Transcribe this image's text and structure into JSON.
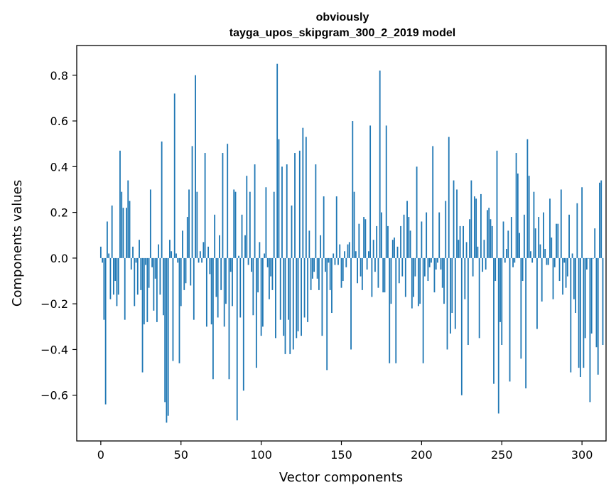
{
  "chart_data": {
    "type": "bar",
    "title_line1": "obviously",
    "title_line2": "tayga_upos_skipgram_300_2_2019 model",
    "xlabel": "Vector components",
    "ylabel": "Components values",
    "xlim": [
      -15,
      315
    ],
    "ylim": [
      -0.8,
      0.93
    ],
    "xticks": [
      0,
      50,
      100,
      150,
      200,
      250,
      300
    ],
    "xtick_labels": [
      "0",
      "50",
      "100",
      "150",
      "200",
      "250",
      "300"
    ],
    "yticks": [
      -0.6,
      -0.4,
      -0.2,
      0.0,
      0.2,
      0.4,
      0.6,
      0.8
    ],
    "ytick_labels": [
      "−0.6",
      "−0.4",
      "−0.2",
      "0.0",
      "0.2",
      "0.4",
      "0.6",
      "0.8"
    ],
    "bar_color": "#1f77b4",
    "values": [
      0.05,
      -0.02,
      -0.27,
      -0.64,
      0.16,
      0.02,
      -0.18,
      0.23,
      -0.16,
      -0.1,
      -0.21,
      -0.16,
      0.47,
      0.29,
      0.22,
      -0.27,
      0.22,
      0.34,
      0.25,
      -0.05,
      0.05,
      -0.21,
      -0.02,
      -0.16,
      0.08,
      -0.14,
      -0.5,
      -0.29,
      -0.03,
      -0.28,
      -0.13,
      0.3,
      -0.04,
      -0.23,
      -0.09,
      -0.28,
      0.06,
      -0.16,
      0.51,
      -0.25,
      -0.63,
      -0.72,
      -0.69,
      0.08,
      0.03,
      -0.45,
      0.72,
      0.02,
      -0.02,
      -0.46,
      -0.21,
      0.12,
      -0.14,
      -0.11,
      0.18,
      0.3,
      -0.12,
      0.49,
      -0.27,
      0.8,
      0.29,
      -0.02,
      0.03,
      -0.02,
      0.07,
      0.46,
      -0.3,
      0.05,
      -0.07,
      -0.29,
      -0.53,
      0.19,
      -0.17,
      -0.26,
      0.1,
      -0.14,
      0.46,
      -0.3,
      -0.2,
      0.5,
      -0.53,
      -0.06,
      -0.21,
      0.3,
      0.29,
      -0.71,
      0.01,
      -0.26,
      0.19,
      -0.58,
      0.1,
      0.36,
      -0.03,
      0.29,
      -0.06,
      -0.25,
      0.41,
      -0.48,
      -0.15,
      0.07,
      -0.34,
      -0.3,
      0.02,
      0.31,
      -0.04,
      -0.18,
      -0.08,
      -0.14,
      0.29,
      -0.35,
      0.85,
      0.52,
      -0.27,
      0.4,
      -0.34,
      -0.42,
      0.41,
      -0.27,
      -0.42,
      0.23,
      -0.4,
      0.46,
      -0.35,
      -0.32,
      0.47,
      -0.34,
      0.57,
      -0.26,
      0.53,
      -0.28,
      0.12,
      -0.14,
      -0.09,
      -0.06,
      0.41,
      -0.09,
      -0.14,
      0.1,
      -0.34,
      0.27,
      -0.06,
      -0.49,
      -0.02,
      -0.14,
      -0.24,
      0.02,
      -0.03,
      0.27,
      -0.03,
      0.06,
      -0.13,
      -0.1,
      0.03,
      -0.04,
      0.06,
      0.07,
      -0.4,
      0.6,
      0.29,
      0.03,
      -0.11,
      0.15,
      -0.08,
      -0.14,
      0.18,
      0.17,
      -0.05,
      0.03,
      0.58,
      -0.17,
      0.08,
      -0.06,
      0.14,
      -0.13,
      0.82,
      0.2,
      -0.15,
      -0.15,
      0.58,
      0.14,
      -0.46,
      -0.2,
      0.08,
      0.09,
      -0.46,
      0.05,
      -0.11,
      0.14,
      -0.08,
      0.19,
      -0.17,
      0.25,
      0.18,
      0.12,
      -0.22,
      -0.17,
      -0.08,
      0.4,
      -0.21,
      -0.2,
      0.16,
      -0.46,
      -0.08,
      0.2,
      -0.1,
      -0.04,
      -0.02,
      0.49,
      -0.15,
      -0.05,
      -0.02,
      0.2,
      -0.05,
      -0.13,
      -0.2,
      0.25,
      -0.4,
      0.53,
      -0.33,
      -0.24,
      0.34,
      -0.31,
      0.3,
      0.08,
      0.14,
      -0.6,
      0.14,
      -0.18,
      0.07,
      -0.38,
      0.17,
      0.34,
      -0.08,
      0.27,
      0.26,
      0.05,
      -0.35,
      0.28,
      -0.06,
      0.08,
      -0.05,
      0.21,
      0.22,
      0.17,
      0.14,
      -0.55,
      -0.1,
      0.47,
      -0.68,
      -0.28,
      -0.38,
      0.16,
      -0.02,
      0.04,
      0.12,
      -0.54,
      0.18,
      -0.04,
      -0.02,
      0.46,
      0.37,
      0.11,
      -0.44,
      -0.1,
      0.19,
      -0.57,
      0.52,
      0.36,
      0.03,
      -0.02,
      0.29,
      0.13,
      -0.31,
      0.18,
      0.06,
      -0.19,
      0.2,
      0.04,
      -0.03,
      -0.03,
      0.26,
      0.09,
      -0.18,
      -0.04,
      0.15,
      0.15,
      -0.1,
      0.3,
      -0.16,
      -0.02,
      -0.13,
      -0.08,
      0.19,
      -0.5,
      0.02,
      -0.18,
      -0.24,
      0.24,
      -0.48,
      -0.52,
      0.31,
      -0.48,
      -0.35,
      -0.05,
      0.0,
      -0.63,
      -0.33,
      0.0,
      0.13,
      -0.39,
      -0.51,
      0.33,
      0.34,
      -0.38
    ]
  }
}
